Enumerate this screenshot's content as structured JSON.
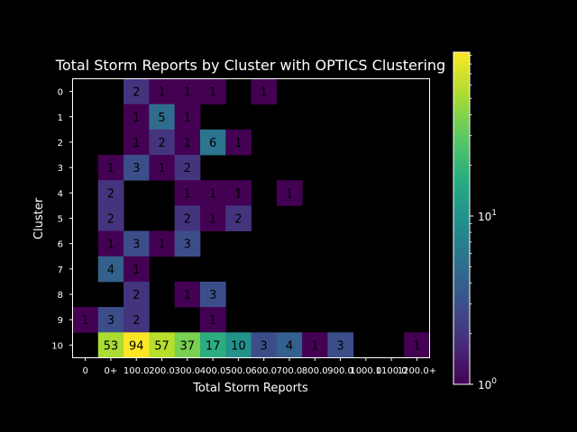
{
  "chart_data": {
    "type": "heatmap",
    "title": "Total Storm Reports by Cluster with OPTICS Clustering",
    "xlabel": "Total Storm Reports",
    "ylabel": "Cluster",
    "x_ticks": [
      "0",
      "0+",
      "100.0",
      "200.0",
      "300.0",
      "400.0",
      "500.0",
      "600.0",
      "700.0",
      "800.0",
      "900.0",
      "1000.0",
      "1100.0",
      "1200.0+"
    ],
    "x_tick_labels_rendered": [
      "0",
      "0+",
      "100.0",
      "200.0",
      "300.0",
      "400.0",
      "500.0",
      "600.0",
      "700.0",
      "800.0",
      "900.0",
      "1000.0",
      "1100.0",
      "1200.0+"
    ],
    "y_ticks": [
      "0",
      "1",
      "2",
      "3",
      "4",
      "5",
      "6",
      "7",
      "8",
      "9",
      "10"
    ],
    "values": [
      [
        null,
        null,
        2,
        1,
        1,
        1,
        null,
        1,
        null,
        null,
        null,
        null,
        null,
        null
      ],
      [
        null,
        null,
        1,
        5,
        1,
        null,
        null,
        null,
        null,
        null,
        null,
        null,
        null,
        null
      ],
      [
        null,
        null,
        1,
        2,
        1,
        6,
        1,
        null,
        null,
        null,
        null,
        null,
        null,
        null
      ],
      [
        null,
        1,
        3,
        1,
        2,
        null,
        null,
        null,
        null,
        null,
        null,
        null,
        null,
        null
      ],
      [
        null,
        2,
        null,
        null,
        1,
        1,
        1,
        null,
        1,
        null,
        null,
        null,
        null,
        null
      ],
      [
        null,
        2,
        null,
        null,
        2,
        1,
        2,
        null,
        null,
        null,
        null,
        null,
        null,
        null
      ],
      [
        null,
        1,
        3,
        1,
        3,
        null,
        null,
        null,
        null,
        null,
        null,
        null,
        null,
        null
      ],
      [
        null,
        4,
        1,
        null,
        null,
        null,
        null,
        null,
        null,
        null,
        null,
        null,
        null,
        null
      ],
      [
        null,
        null,
        2,
        null,
        1,
        3,
        null,
        null,
        null,
        null,
        null,
        null,
        null,
        null
      ],
      [
        1,
        3,
        2,
        null,
        null,
        1,
        null,
        null,
        null,
        null,
        null,
        null,
        null,
        null
      ],
      [
        null,
        53,
        94,
        57,
        37,
        17,
        10,
        3,
        4,
        1,
        3,
        null,
        null,
        1
      ]
    ],
    "colorbar": {
      "scale": "log",
      "colormap": "viridis",
      "min": 1,
      "max": 94,
      "ticks": [
        "10",
        "10"
      ],
      "tick_superscripts": [
        "0",
        "1"
      ]
    },
    "grid": false,
    "background": "#000000"
  }
}
